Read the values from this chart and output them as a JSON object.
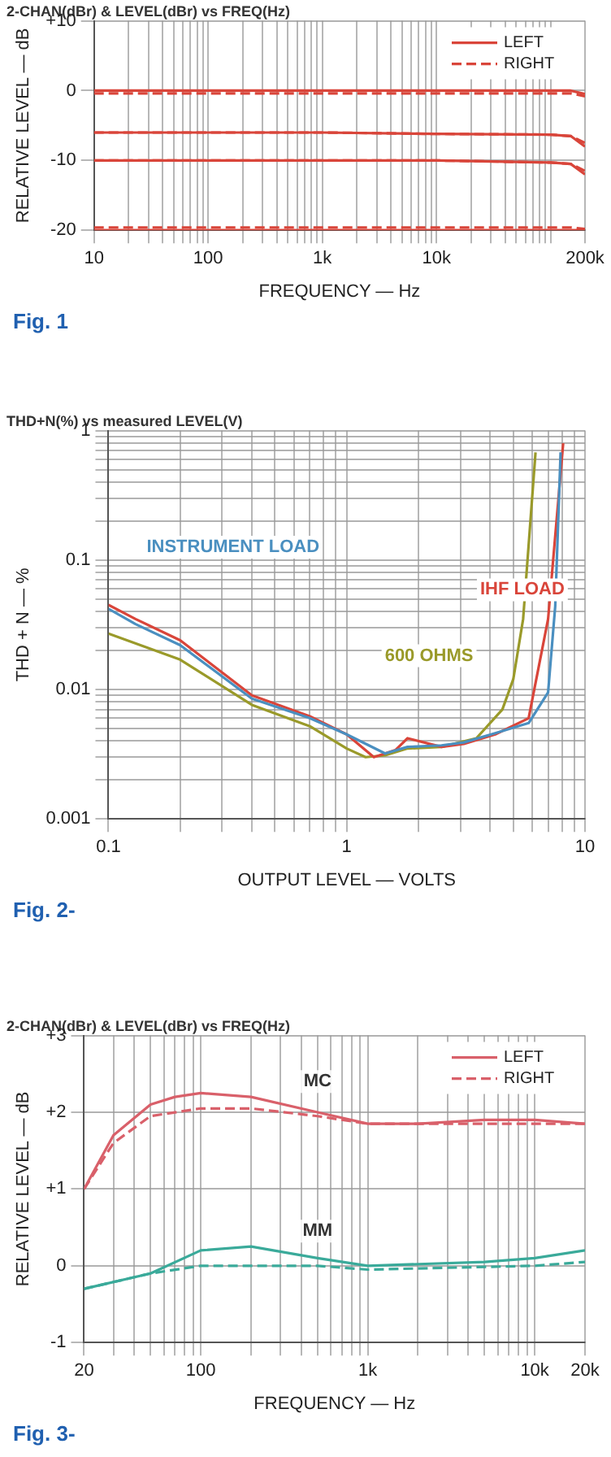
{
  "chart_data": [
    {
      "type": "line",
      "subtitle": "2-CHAN(dBr) & LEVEL(dBr) vs FREQ(Hz)",
      "xlabel": "FREQUENCY — Hz",
      "ylabel": "RELATIVE LEVEL — dB",
      "log": "x",
      "grid": true,
      "legend": "top right",
      "marker": "none",
      "xlim": [
        10,
        200000
      ],
      "ylim": [
        -20,
        10
      ],
      "xticks": [
        10,
        {
          "value": 20,
          "label": null
        },
        {
          "value": 30,
          "label": null
        },
        {
          "value": 40,
          "label": null
        },
        {
          "value": 50,
          "label": null
        },
        {
          "value": 60,
          "label": null
        },
        {
          "value": 70,
          "label": null
        },
        {
          "value": 80,
          "label": null
        },
        {
          "value": 90,
          "label": null
        },
        100,
        {
          "value": 200,
          "label": null
        },
        {
          "value": 300,
          "label": null
        },
        {
          "value": 400,
          "label": null
        },
        {
          "value": 500,
          "label": null
        },
        {
          "value": 600,
          "label": null
        },
        {
          "value": 700,
          "label": null
        },
        {
          "value": 800,
          "label": null
        },
        {
          "value": 900,
          "label": null
        },
        {
          "value": 1000,
          "label": "1k"
        },
        {
          "value": 2000,
          "label": null
        },
        {
          "value": 3000,
          "label": null
        },
        {
          "value": 4000,
          "label": null
        },
        {
          "value": 5000,
          "label": null
        },
        {
          "value": 6000,
          "label": null
        },
        {
          "value": 7000,
          "label": null
        },
        {
          "value": 8000,
          "label": null
        },
        {
          "value": 9000,
          "label": null
        },
        {
          "value": 10000,
          "label": "10k"
        },
        {
          "value": 20000,
          "label": null
        },
        {
          "value": 30000,
          "label": null
        },
        {
          "value": 40000,
          "label": null
        },
        {
          "value": 50000,
          "label": null
        },
        {
          "value": 60000,
          "label": null
        },
        {
          "value": 70000,
          "label": null
        },
        {
          "value": 80000,
          "label": null
        },
        {
          "value": 90000,
          "label": null
        },
        {
          "value": 100000,
          "label": null
        },
        {
          "value": 200000,
          "label": "200k"
        }
      ],
      "yticks": [
        {
          "value": 10,
          "label": "+10"
        },
        0,
        -10,
        -20
      ],
      "annotations": [
        "Fig. 1"
      ],
      "series": [
        {
          "name": "LEFT",
          "color": "#d9453a",
          "line_style": "solid",
          "x": [
            10,
            20,
            100,
            1000,
            10000,
            100000,
            150000,
            200000
          ],
          "values": [
            0,
            0,
            0,
            0,
            0,
            0,
            0,
            -0.5
          ]
        },
        {
          "name": "RIGHT",
          "color": "#d9453a",
          "line_style": "dashed",
          "x": [
            10,
            20,
            100,
            1000,
            10000,
            100000,
            150000,
            200000
          ],
          "values": [
            -0.4,
            -0.4,
            -0.4,
            -0.4,
            -0.4,
            -0.4,
            -0.4,
            -0.8
          ]
        },
        {
          "color": "#d9453a",
          "line_style": "solid",
          "x": [
            10,
            20,
            100,
            1000,
            10000,
            100000,
            150000,
            200000
          ],
          "values": [
            -6,
            -6,
            -6,
            -6,
            -6.2,
            -6.3,
            -6.5,
            -8
          ]
        },
        {
          "color": "#d9453a",
          "line_style": "dashed",
          "x": [
            10,
            20,
            100,
            1000,
            10000,
            100000,
            150000,
            200000
          ],
          "values": [
            -6,
            -6,
            -6,
            -6,
            -6.2,
            -6.3,
            -6.5,
            -7.5
          ]
        },
        {
          "color": "#d9453a",
          "line_style": "solid",
          "x": [
            10,
            20,
            100,
            1000,
            10000,
            100000,
            150000,
            200000
          ],
          "values": [
            -10,
            -10,
            -10,
            -10,
            -10,
            -10.3,
            -10.5,
            -12
          ]
        },
        {
          "color": "#d9453a",
          "line_style": "dashed",
          "x": [
            10,
            20,
            100,
            1000,
            10000,
            100000,
            150000,
            200000
          ],
          "values": [
            -10,
            -10,
            -10,
            -10,
            -10,
            -10.3,
            -10.5,
            -11.5
          ]
        },
        {
          "color": "#d9453a",
          "line_style": "solid",
          "x": [
            10,
            20,
            100,
            1000,
            10000,
            100000,
            150000,
            200000
          ],
          "values": [
            -20,
            -20,
            -20,
            -20,
            -20,
            -20,
            -20,
            -20
          ]
        },
        {
          "color": "#d9453a",
          "line_style": "dashed",
          "x": [
            10,
            20,
            100,
            1000,
            10000,
            100000,
            150000,
            200000
          ],
          "values": [
            -19.6,
            -19.6,
            -19.6,
            -19.6,
            -19.6,
            -19.6,
            -19.6,
            -19.8
          ]
        }
      ]
    },
    {
      "type": "line",
      "subtitle": "THD+N(%) vs measured LEVEL(V)",
      "xlabel": "OUTPUT LEVEL — VOLTS",
      "ylabel": "THD + N — %",
      "log": "xy",
      "grid": true,
      "marker": "none",
      "xlim": [
        0.1,
        10
      ],
      "ylim": [
        0.001,
        1
      ],
      "xticks": [
        0.1,
        {
          "value": 0.2,
          "label": null
        },
        {
          "value": 0.3,
          "label": null
        },
        {
          "value": 0.4,
          "label": null
        },
        {
          "value": 0.5,
          "label": null
        },
        {
          "value": 0.6,
          "label": null
        },
        {
          "value": 0.7,
          "label": null
        },
        {
          "value": 0.8,
          "label": null
        },
        {
          "value": 0.9,
          "label": null
        },
        1,
        {
          "value": 2,
          "label": null
        },
        {
          "value": 3,
          "label": null
        },
        {
          "value": 4,
          "label": null
        },
        {
          "value": 5,
          "label": null
        },
        {
          "value": 6,
          "label": null
        },
        {
          "value": 7,
          "label": null
        },
        {
          "value": 8,
          "label": null
        },
        {
          "value": 9,
          "label": null
        },
        10
      ],
      "yticks": [
        0.001,
        {
          "value": 0.002,
          "label": null
        },
        {
          "value": 0.003,
          "label": null
        },
        {
          "value": 0.004,
          "label": null
        },
        {
          "value": 0.005,
          "label": null
        },
        {
          "value": 0.006,
          "label": null
        },
        {
          "value": 0.007,
          "label": null
        },
        {
          "value": 0.008,
          "label": null
        },
        {
          "value": 0.009,
          "label": null
        },
        0.01,
        {
          "value": 0.02,
          "label": null
        },
        {
          "value": 0.03,
          "label": null
        },
        {
          "value": 0.04,
          "label": null
        },
        {
          "value": 0.05,
          "label": null
        },
        {
          "value": 0.06,
          "label": null
        },
        {
          "value": 0.07,
          "label": null
        },
        {
          "value": 0.08,
          "label": null
        },
        {
          "value": 0.09,
          "label": null
        },
        0.1,
        {
          "value": 0.2,
          "label": null
        },
        {
          "value": 0.3,
          "label": null
        },
        {
          "value": 0.4,
          "label": null
        },
        {
          "value": 0.5,
          "label": null
        },
        {
          "value": 0.6,
          "label": null
        },
        {
          "value": 0.7,
          "label": null
        },
        {
          "value": 0.8,
          "label": null
        },
        {
          "value": 0.9,
          "label": null
        },
        1
      ],
      "annotations": [
        "Fig. 2-"
      ],
      "series": [
        {
          "name": "INSTRUMENT LOAD",
          "color": "#4a8fc0",
          "x": [
            0.1,
            0.13,
            0.2,
            0.4,
            0.7,
            1,
            1.45,
            1.8,
            2.5,
            3.1,
            4.2,
            5.8,
            7,
            7.5,
            7.9
          ],
          "values": [
            0.042,
            0.032,
            0.022,
            0.0085,
            0.006,
            0.0045,
            0.0032,
            0.0036,
            0.0037,
            0.0039,
            0.0046,
            0.0055,
            0.0095,
            0.044,
            0.68
          ]
        },
        {
          "name": "IHF LOAD",
          "color": "#d9453a",
          "x": [
            0.1,
            0.13,
            0.2,
            0.4,
            0.7,
            1,
            1.3,
            1.6,
            1.8,
            2.5,
            3.1,
            4.2,
            5.8,
            7,
            8.1
          ],
          "values": [
            0.045,
            0.035,
            0.024,
            0.009,
            0.0062,
            0.0045,
            0.003,
            0.0034,
            0.0042,
            0.0036,
            0.0038,
            0.0045,
            0.006,
            0.035,
            0.8
          ]
        },
        {
          "name": "600 OHMS",
          "color": "#9a9a2a",
          "x": [
            0.1,
            0.2,
            0.4,
            0.7,
            1,
            1.2,
            1.45,
            1.8,
            2.5,
            3.5,
            4.5,
            5,
            5.5,
            6.2
          ],
          "values": [
            0.027,
            0.017,
            0.0076,
            0.0052,
            0.0035,
            0.003,
            0.0031,
            0.0035,
            0.0036,
            0.0042,
            0.007,
            0.012,
            0.035,
            0.68
          ]
        }
      ]
    },
    {
      "type": "line",
      "subtitle": "2-CHAN(dBr) & LEVEL(dBr) vs FREQ(Hz)",
      "xlabel": "FREQUENCY — Hz",
      "ylabel": "RELATIVE LEVEL — dB",
      "log": "x",
      "grid": true,
      "legend": "top right",
      "marker": "none",
      "xlim": [
        20,
        20000
      ],
      "ylim": [
        -1,
        3
      ],
      "xticks": [
        20,
        {
          "value": 30,
          "label": null
        },
        {
          "value": 40,
          "label": null
        },
        {
          "value": 50,
          "label": null
        },
        {
          "value": 60,
          "label": null
        },
        {
          "value": 70,
          "label": null
        },
        {
          "value": 80,
          "label": null
        },
        {
          "value": 90,
          "label": null
        },
        100,
        {
          "value": 200,
          "label": null
        },
        {
          "value": 300,
          "label": null
        },
        {
          "value": 400,
          "label": null
        },
        {
          "value": 500,
          "label": null
        },
        {
          "value": 600,
          "label": null
        },
        {
          "value": 700,
          "label": null
        },
        {
          "value": 800,
          "label": null
        },
        {
          "value": 900,
          "label": null
        },
        {
          "value": 1000,
          "label": "1k"
        },
        {
          "value": 2000,
          "label": null
        },
        {
          "value": 3000,
          "label": null
        },
        {
          "value": 4000,
          "label": null
        },
        {
          "value": 5000,
          "label": null
        },
        {
          "value": 6000,
          "label": null
        },
        {
          "value": 7000,
          "label": null
        },
        {
          "value": 8000,
          "label": null
        },
        {
          "value": 9000,
          "label": null
        },
        {
          "value": 10000,
          "label": "10k"
        },
        {
          "value": 20000,
          "label": "20k"
        }
      ],
      "yticks": [
        {
          "value": 3,
          "label": "+3"
        },
        {
          "value": 2,
          "label": "+2"
        },
        {
          "value": 1,
          "label": "+1"
        },
        0,
        -1
      ],
      "annotations": [
        {
          "text": "MC",
          "x": 500,
          "y": 2.4
        },
        {
          "text": "MM",
          "x": 500,
          "y": 0.45
        },
        "Fig. 3-"
      ],
      "series": [
        {
          "name": "LEFT",
          "color": "#d9606a",
          "line_style": "solid",
          "x": [
            20,
            30,
            50,
            70,
            100,
            200,
            500,
            1000,
            2000,
            5000,
            10000,
            20000
          ],
          "values": [
            1.0,
            1.7,
            2.1,
            2.2,
            2.25,
            2.2,
            2.0,
            1.85,
            1.85,
            1.9,
            1.9,
            1.85
          ]
        },
        {
          "name": "RIGHT",
          "color": "#d9606a",
          "line_style": "dashed",
          "x": [
            20,
            30,
            50,
            100,
            200,
            500,
            1000,
            5000,
            20000
          ],
          "values": [
            1.0,
            1.6,
            1.95,
            2.05,
            2.05,
            1.95,
            1.85,
            1.85,
            1.85
          ]
        },
        {
          "color": "#3aaa9a",
          "line_style": "solid",
          "x": [
            20,
            50,
            100,
            200,
            500,
            1000,
            5000,
            10000,
            20000
          ],
          "values": [
            -0.3,
            -0.1,
            0.2,
            0.25,
            0.1,
            0.0,
            0.05,
            0.1,
            0.2
          ]
        },
        {
          "color": "#3aaa9a",
          "line_style": "dashed",
          "x": [
            20,
            50,
            100,
            200,
            500,
            1000,
            10000,
            20000
          ],
          "values": [
            -0.3,
            -0.1,
            0.0,
            0.0,
            0.0,
            -0.05,
            0.0,
            0.05
          ]
        }
      ]
    }
  ]
}
